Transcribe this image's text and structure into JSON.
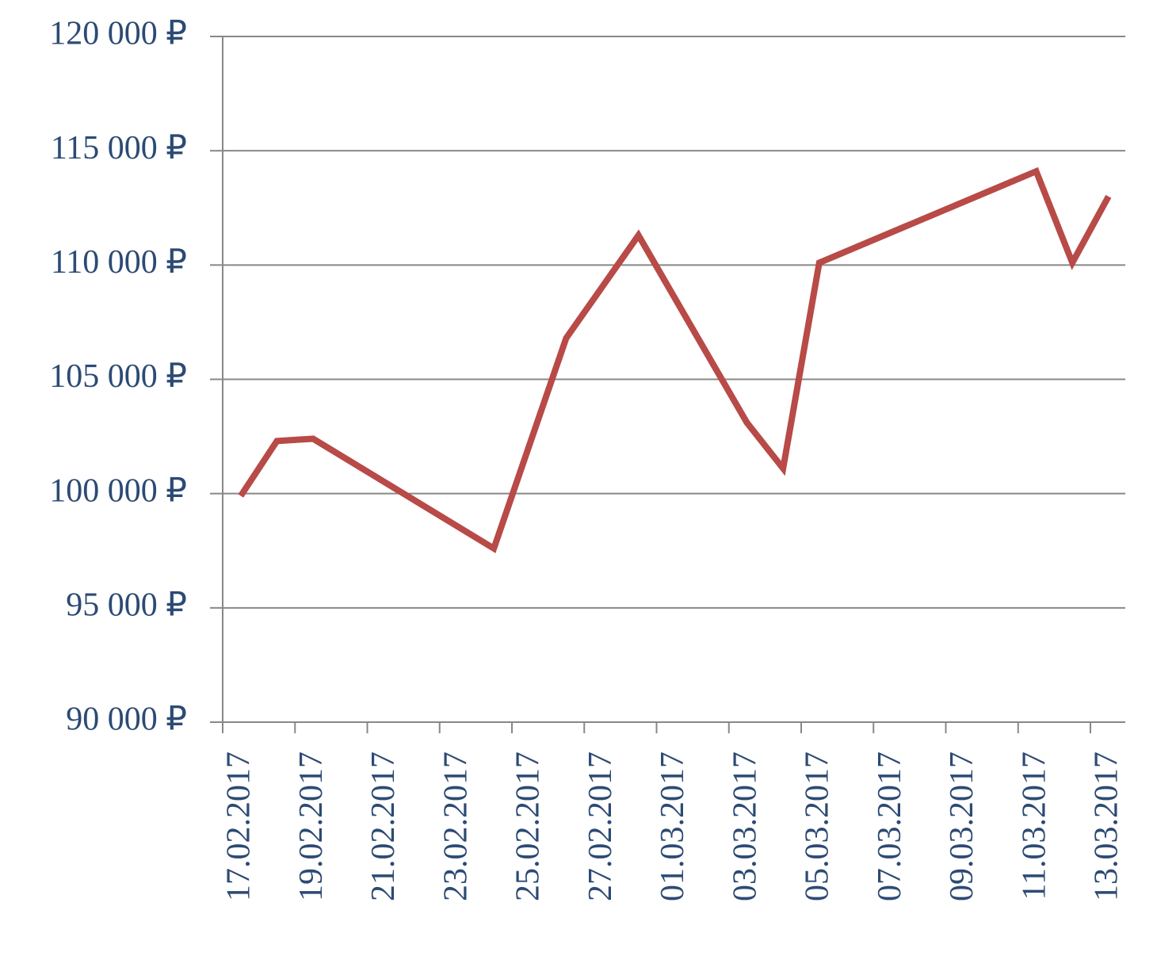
{
  "chart_data": {
    "type": "line",
    "x": [
      "17.02.2017",
      "18.02.2017",
      "19.02.2017",
      "24.02.2017",
      "26.02.2017",
      "28.02.2017",
      "03.03.2017",
      "04.03.2017",
      "05.03.2017",
      "11.03.2017",
      "12.03.2017",
      "13.03.2017"
    ],
    "series": [
      {
        "color": "#b84a47",
        "values": [
          99900,
          102300,
          102400,
          97600,
          106800,
          111300,
          103100,
          101100,
          110100,
          114100,
          110100,
          113000
        ]
      }
    ],
    "ylim": [
      90000,
      120000
    ],
    "yticks": [
      {
        "value": 90000,
        "label": "90 000 ₽"
      },
      {
        "value": 95000,
        "label": "95 000 ₽"
      },
      {
        "value": 100000,
        "label": "100 000 ₽"
      },
      {
        "value": 105000,
        "label": "105 000 ₽"
      },
      {
        "value": 110000,
        "label": "110 000 ₽"
      },
      {
        "value": 115000,
        "label": "115 000 ₽"
      },
      {
        "value": 120000,
        "label": "120 000 ₽"
      }
    ],
    "xticks": [
      "17.02.2017",
      "19.02.2017",
      "21.02.2017",
      "23.02.2017",
      "25.02.2017",
      "27.02.2017",
      "01.03.2017",
      "03.03.2017",
      "05.03.2017",
      "07.03.2017",
      "09.03.2017",
      "11.03.2017",
      "13.03.2017"
    ],
    "grid": true
  }
}
